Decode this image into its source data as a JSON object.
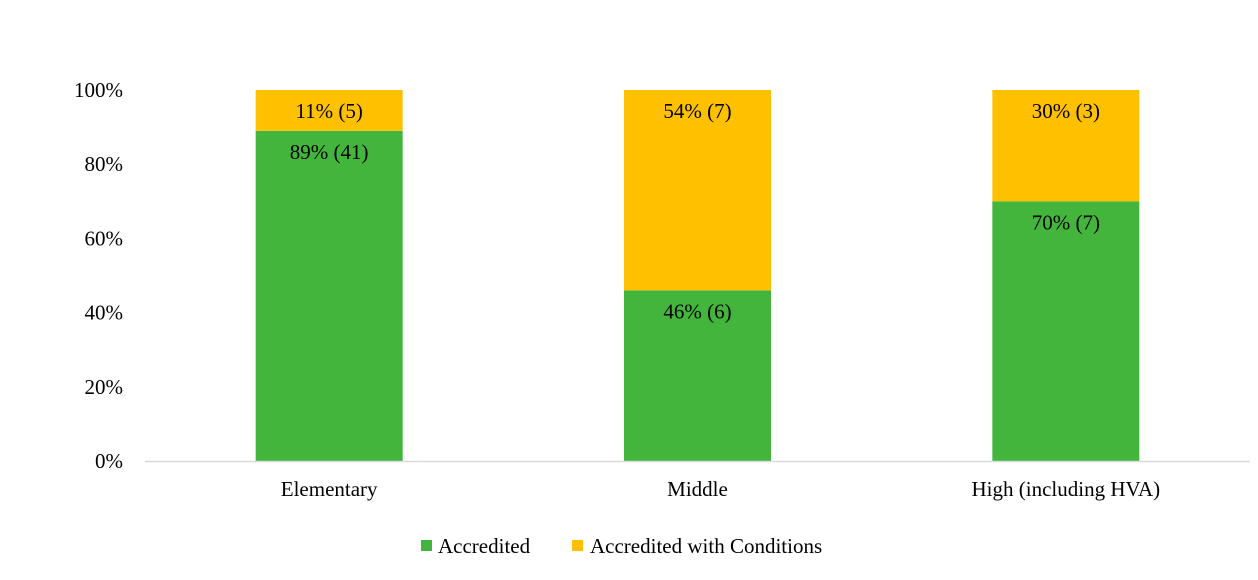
{
  "chart_data": {
    "type": "bar",
    "stacked": true,
    "percent": true,
    "categories": [
      "Elementary",
      "Middle",
      "High (including HVA)"
    ],
    "series": [
      {
        "name": "Accredited",
        "color": "#43B53C",
        "values": [
          89,
          46,
          70
        ],
        "labels": [
          "89% (41)",
          "46% (6)",
          "70% (7)"
        ]
      },
      {
        "name": "Accredited with Conditions",
        "color": "#FFC000",
        "values": [
          11,
          54,
          30
        ],
        "labels": [
          "11% (5)",
          "54% (7)",
          "30% (3)"
        ]
      }
    ],
    "ylim": [
      0,
      100
    ],
    "yticks": [
      "0%",
      "20%",
      "40%",
      "60%",
      "80%",
      "100%"
    ],
    "title": "",
    "xlabel": "",
    "ylabel": "",
    "grid": false,
    "legend": "bottom-center"
  }
}
